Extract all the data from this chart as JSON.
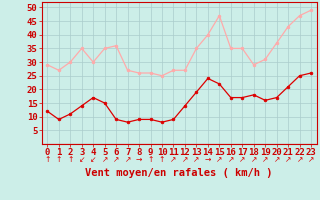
{
  "hours": [
    0,
    1,
    2,
    3,
    4,
    5,
    6,
    7,
    8,
    9,
    10,
    11,
    12,
    13,
    14,
    15,
    16,
    17,
    18,
    19,
    20,
    21,
    22,
    23
  ],
  "wind_avg": [
    12,
    9,
    11,
    14,
    17,
    15,
    9,
    8,
    9,
    9,
    8,
    9,
    14,
    19,
    24,
    22,
    17,
    17,
    18,
    16,
    17,
    21,
    25,
    26
  ],
  "wind_gust": [
    29,
    27,
    30,
    35,
    30,
    35,
    36,
    27,
    26,
    26,
    25,
    27,
    27,
    35,
    40,
    47,
    35,
    35,
    29,
    31,
    37,
    43,
    47,
    49
  ],
  "avg_color": "#dd0000",
  "gust_color": "#ffaaaa",
  "background_color": "#cceee8",
  "grid_color": "#aacccc",
  "xlabel": "Vent moyen/en rafales ( km/h )",
  "xlabel_color": "#cc0000",
  "tick_color": "#cc0000",
  "ylim": [
    0,
    52
  ],
  "yticks": [
    5,
    10,
    15,
    20,
    25,
    30,
    35,
    40,
    45,
    50
  ],
  "axis_fontsize": 6.5,
  "label_fontsize": 7.5,
  "arrow_chars": [
    "↑",
    "↑",
    "↑",
    "↙",
    "↙",
    "↗",
    "↗",
    "↗",
    "→",
    "↑",
    "↑",
    "↗",
    "↗",
    "↗",
    "→",
    "↗",
    "↗",
    "↗",
    "↗",
    "↗",
    "↗",
    "↗",
    "↗",
    "↗"
  ]
}
